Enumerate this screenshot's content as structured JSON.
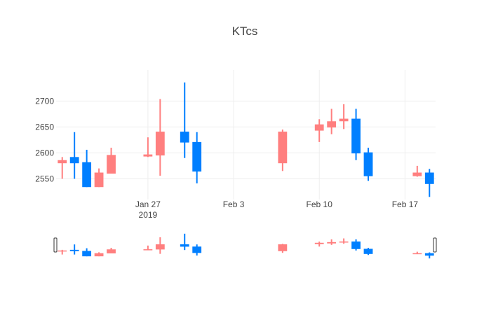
{
  "chart_data": {
    "type": "candlestick",
    "title": "KTcs",
    "xlabel": "",
    "ylabel": "",
    "ylim": [
      2510,
      2760
    ],
    "xlim": [
      "2019-01-20",
      "2019-02-19"
    ],
    "grid": true,
    "legend": false,
    "colors": {
      "increasing": "#FF7F7F",
      "decreasing": "#007FFF",
      "axis_text": "#444444",
      "grid": "#eeeeee"
    },
    "y_ticks": [
      2550,
      2600,
      2650,
      2700
    ],
    "y_tick_labels": [
      "2550",
      "2600",
      "2650",
      "2700"
    ],
    "x_ticks": [
      "2019-01-27",
      "2019-02-03",
      "2019-02-10",
      "2019-02-17"
    ],
    "x_tick_labels": [
      "Jan 27",
      "Feb 3",
      "Feb 10",
      "Feb 17"
    ],
    "x_tick_sublabel": "2019",
    "candles": [
      {
        "date": "2019-01-20",
        "open": 2580,
        "high": 2592,
        "low": 2550,
        "close": 2586
      },
      {
        "date": "2019-01-21",
        "open": 2592,
        "high": 2640,
        "low": 2550,
        "close": 2580
      },
      {
        "date": "2019-01-22",
        "open": 2582,
        "high": 2606,
        "low": 2534,
        "close": 2534
      },
      {
        "date": "2019-01-23",
        "open": 2534,
        "high": 2570,
        "low": 2534,
        "close": 2562
      },
      {
        "date": "2019-01-24",
        "open": 2560,
        "high": 2610,
        "low": 2560,
        "close": 2596
      },
      {
        "date": "2019-01-27",
        "open": 2593,
        "high": 2630,
        "low": 2592,
        "close": 2597
      },
      {
        "date": "2019-01-28",
        "open": 2595,
        "high": 2704,
        "low": 2556,
        "close": 2641
      },
      {
        "date": "2019-01-30",
        "open": 2641,
        "high": 2736,
        "low": 2590,
        "close": 2620
      },
      {
        "date": "2019-01-31",
        "open": 2621,
        "high": 2640,
        "low": 2541,
        "close": 2564
      },
      {
        "date": "2019-02-07",
        "open": 2580,
        "high": 2645,
        "low": 2565,
        "close": 2641
      },
      {
        "date": "2019-02-10",
        "open": 2643,
        "high": 2665,
        "low": 2621,
        "close": 2655
      },
      {
        "date": "2019-02-11",
        "open": 2649,
        "high": 2685,
        "low": 2636,
        "close": 2661
      },
      {
        "date": "2019-02-12",
        "open": 2661,
        "high": 2694,
        "low": 2646,
        "close": 2666
      },
      {
        "date": "2019-02-13",
        "open": 2666,
        "high": 2685,
        "low": 2586,
        "close": 2599
      },
      {
        "date": "2019-02-14",
        "open": 2601,
        "high": 2610,
        "low": 2546,
        "close": 2555
      },
      {
        "date": "2019-02-18",
        "open": 2555,
        "high": 2575,
        "low": 2554,
        "close": 2562
      },
      {
        "date": "2019-02-19",
        "open": 2562,
        "high": 2569,
        "low": 2515,
        "close": 2540
      }
    ]
  }
}
